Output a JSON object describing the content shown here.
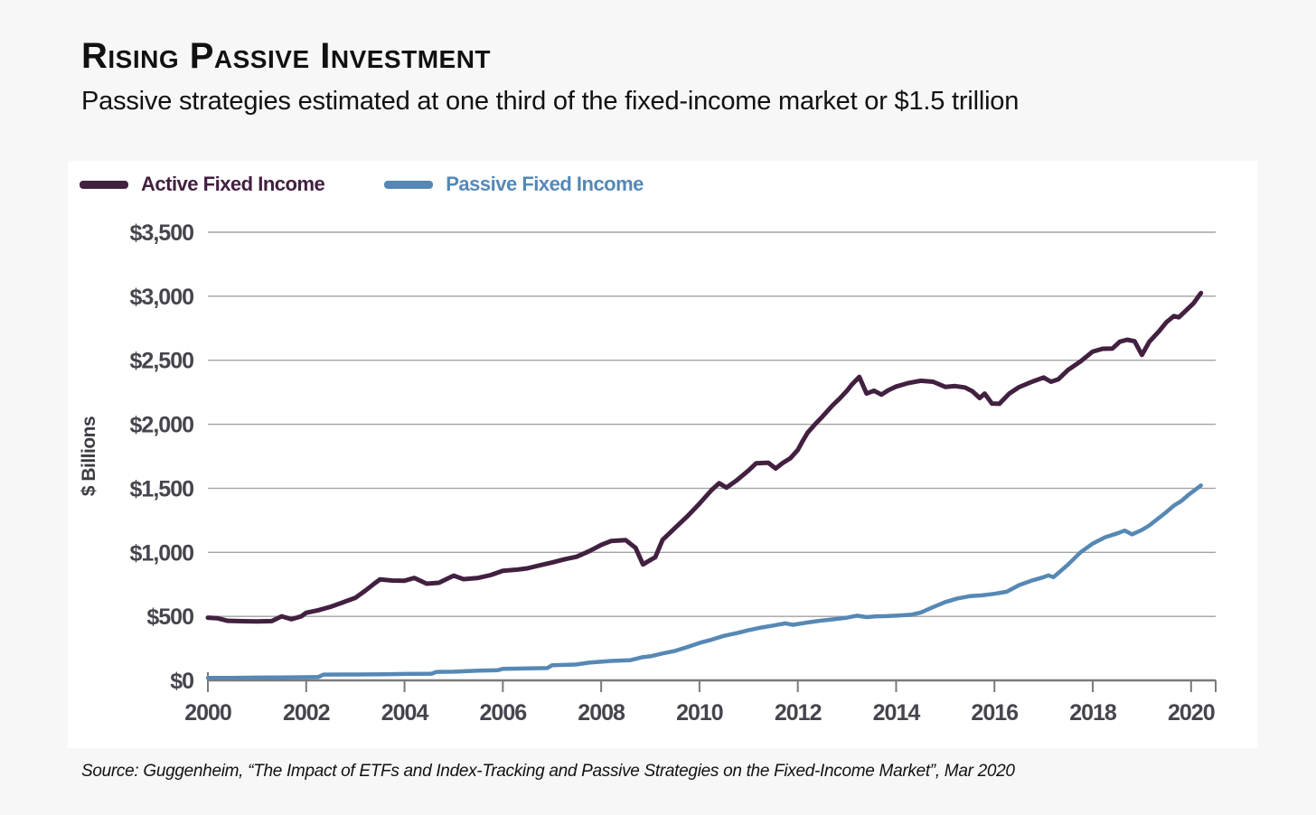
{
  "header": {
    "title": "Rising Passive Investment",
    "subtitle": "Passive strategies estimated at one third of the fixed-income market or $1.5 trillion"
  },
  "legend": {
    "items": [
      {
        "label": "Active Fixed Income",
        "color": "#422040"
      },
      {
        "label": "Passive Fixed Income",
        "color": "#5688b5"
      }
    ]
  },
  "chart_data": {
    "type": "line",
    "title": "Rising Passive Investment",
    "ylabel": "$ Billions",
    "xlabel": "",
    "xlim": [
      2000,
      2020.5
    ],
    "ylim": [
      0,
      3500
    ],
    "grid": "horizontal",
    "legend_position": "top-left",
    "colors": {
      "gridline": "#a3a3a3",
      "axis": "#7a7a7a",
      "tick_text": "#45454d"
    },
    "yticks": [
      {
        "value": 0,
        "label": "$0"
      },
      {
        "value": 500,
        "label": "$500"
      },
      {
        "value": 1000,
        "label": "$1,000"
      },
      {
        "value": 1500,
        "label": "$1,500"
      },
      {
        "value": 2000,
        "label": "$2,000"
      },
      {
        "value": 2500,
        "label": "$2,500"
      },
      {
        "value": 3000,
        "label": "$3,000"
      },
      {
        "value": 3500,
        "label": "$3,500"
      }
    ],
    "xticks": [
      {
        "value": 2000,
        "label": "2000"
      },
      {
        "value": 2002,
        "label": "2002"
      },
      {
        "value": 2004,
        "label": "2004"
      },
      {
        "value": 2006,
        "label": "2006"
      },
      {
        "value": 2008,
        "label": "2008"
      },
      {
        "value": 2010,
        "label": "2010"
      },
      {
        "value": 2012,
        "label": "2012"
      },
      {
        "value": 2014,
        "label": "2014"
      },
      {
        "value": 2016,
        "label": "2016"
      },
      {
        "value": 2018,
        "label": "2018"
      },
      {
        "value": 2020,
        "label": "2020"
      }
    ],
    "series": [
      {
        "name": "Active Fixed Income",
        "color": "#422040",
        "stroke_width": 5,
        "points": [
          [
            2000.0,
            490
          ],
          [
            2000.2,
            485
          ],
          [
            2000.4,
            465
          ],
          [
            2000.7,
            462
          ],
          [
            2001.0,
            460
          ],
          [
            2001.3,
            463
          ],
          [
            2001.5,
            500
          ],
          [
            2001.7,
            478
          ],
          [
            2001.9,
            500
          ],
          [
            2002.0,
            528
          ],
          [
            2002.25,
            548
          ],
          [
            2002.5,
            575
          ],
          [
            2002.75,
            610
          ],
          [
            2003.0,
            645
          ],
          [
            2003.2,
            700
          ],
          [
            2003.4,
            760
          ],
          [
            2003.5,
            788
          ],
          [
            2003.75,
            780
          ],
          [
            2004.0,
            778
          ],
          [
            2004.2,
            800
          ],
          [
            2004.45,
            755
          ],
          [
            2004.7,
            762
          ],
          [
            2004.85,
            790
          ],
          [
            2005.0,
            818
          ],
          [
            2005.2,
            790
          ],
          [
            2005.5,
            800
          ],
          [
            2005.75,
            822
          ],
          [
            2006.0,
            855
          ],
          [
            2006.3,
            865
          ],
          [
            2006.5,
            875
          ],
          [
            2006.75,
            898
          ],
          [
            2007.0,
            920
          ],
          [
            2007.25,
            945
          ],
          [
            2007.5,
            965
          ],
          [
            2007.75,
            1008
          ],
          [
            2008.0,
            1058
          ],
          [
            2008.2,
            1088
          ],
          [
            2008.5,
            1095
          ],
          [
            2008.7,
            1035
          ],
          [
            2008.85,
            905
          ],
          [
            2009.0,
            940
          ],
          [
            2009.1,
            962
          ],
          [
            2009.25,
            1098
          ],
          [
            2009.5,
            1190
          ],
          [
            2009.75,
            1280
          ],
          [
            2010.0,
            1380
          ],
          [
            2010.25,
            1488
          ],
          [
            2010.4,
            1540
          ],
          [
            2010.55,
            1505
          ],
          [
            2010.75,
            1560
          ],
          [
            2011.0,
            1640
          ],
          [
            2011.15,
            1695
          ],
          [
            2011.4,
            1700
          ],
          [
            2011.55,
            1655
          ],
          [
            2011.7,
            1700
          ],
          [
            2011.85,
            1735
          ],
          [
            2012.0,
            1800
          ],
          [
            2012.1,
            1870
          ],
          [
            2012.2,
            1935
          ],
          [
            2012.35,
            2000
          ],
          [
            2012.5,
            2060
          ],
          [
            2012.7,
            2145
          ],
          [
            2012.85,
            2200
          ],
          [
            2013.0,
            2262
          ],
          [
            2013.1,
            2310
          ],
          [
            2013.25,
            2370
          ],
          [
            2013.4,
            2240
          ],
          [
            2013.55,
            2262
          ],
          [
            2013.7,
            2232
          ],
          [
            2013.85,
            2268
          ],
          [
            2014.0,
            2295
          ],
          [
            2014.25,
            2322
          ],
          [
            2014.5,
            2340
          ],
          [
            2014.75,
            2332
          ],
          [
            2015.0,
            2292
          ],
          [
            2015.2,
            2298
          ],
          [
            2015.4,
            2288
          ],
          [
            2015.55,
            2258
          ],
          [
            2015.7,
            2205
          ],
          [
            2015.8,
            2240
          ],
          [
            2015.95,
            2162
          ],
          [
            2016.1,
            2160
          ],
          [
            2016.3,
            2240
          ],
          [
            2016.5,
            2290
          ],
          [
            2016.75,
            2330
          ],
          [
            2017.0,
            2365
          ],
          [
            2017.15,
            2332
          ],
          [
            2017.3,
            2352
          ],
          [
            2017.5,
            2425
          ],
          [
            2017.75,
            2490
          ],
          [
            2018.0,
            2568
          ],
          [
            2018.2,
            2590
          ],
          [
            2018.4,
            2592
          ],
          [
            2018.55,
            2645
          ],
          [
            2018.7,
            2660
          ],
          [
            2018.85,
            2648
          ],
          [
            2019.0,
            2542
          ],
          [
            2019.15,
            2645
          ],
          [
            2019.35,
            2728
          ],
          [
            2019.5,
            2798
          ],
          [
            2019.65,
            2845
          ],
          [
            2019.75,
            2835
          ],
          [
            2019.9,
            2890
          ],
          [
            2020.05,
            2945
          ],
          [
            2020.2,
            3025
          ]
        ]
      },
      {
        "name": "Passive Fixed Income",
        "color": "#5688b5",
        "stroke_width": 4.5,
        "points": [
          [
            2000.0,
            20
          ],
          [
            2000.5,
            20
          ],
          [
            2001.0,
            22
          ],
          [
            2001.5,
            23
          ],
          [
            2002.0,
            25
          ],
          [
            2002.25,
            27
          ],
          [
            2002.35,
            45
          ],
          [
            2003.0,
            46
          ],
          [
            2003.6,
            47
          ],
          [
            2004.0,
            50
          ],
          [
            2004.55,
            52
          ],
          [
            2004.65,
            66
          ],
          [
            2005.0,
            68
          ],
          [
            2005.5,
            76
          ],
          [
            2005.9,
            80
          ],
          [
            2006.0,
            90
          ],
          [
            2006.5,
            94
          ],
          [
            2006.9,
            96
          ],
          [
            2007.0,
            118
          ],
          [
            2007.5,
            124
          ],
          [
            2007.75,
            138
          ],
          [
            2008.2,
            152
          ],
          [
            2008.6,
            158
          ],
          [
            2008.85,
            182
          ],
          [
            2009.0,
            188
          ],
          [
            2009.25,
            210
          ],
          [
            2009.5,
            230
          ],
          [
            2009.75,
            260
          ],
          [
            2010.0,
            292
          ],
          [
            2010.25,
            318
          ],
          [
            2010.5,
            348
          ],
          [
            2010.75,
            368
          ],
          [
            2011.0,
            392
          ],
          [
            2011.25,
            412
          ],
          [
            2011.5,
            428
          ],
          [
            2011.75,
            445
          ],
          [
            2011.9,
            434
          ],
          [
            2012.0,
            440
          ],
          [
            2012.25,
            455
          ],
          [
            2012.5,
            468
          ],
          [
            2012.75,
            478
          ],
          [
            2013.0,
            490
          ],
          [
            2013.2,
            505
          ],
          [
            2013.4,
            494
          ],
          [
            2013.6,
            500
          ],
          [
            2013.8,
            502
          ],
          [
            2014.0,
            505
          ],
          [
            2014.3,
            512
          ],
          [
            2014.5,
            530
          ],
          [
            2014.75,
            572
          ],
          [
            2015.0,
            612
          ],
          [
            2015.25,
            640
          ],
          [
            2015.5,
            658
          ],
          [
            2015.75,
            664
          ],
          [
            2016.0,
            676
          ],
          [
            2016.25,
            692
          ],
          [
            2016.5,
            744
          ],
          [
            2016.75,
            778
          ],
          [
            2017.0,
            806
          ],
          [
            2017.1,
            820
          ],
          [
            2017.2,
            806
          ],
          [
            2017.35,
            855
          ],
          [
            2017.5,
            905
          ],
          [
            2017.75,
            1000
          ],
          [
            2018.0,
            1068
          ],
          [
            2018.25,
            1118
          ],
          [
            2018.5,
            1148
          ],
          [
            2018.65,
            1170
          ],
          [
            2018.8,
            1140
          ],
          [
            2019.0,
            1175
          ],
          [
            2019.15,
            1210
          ],
          [
            2019.35,
            1270
          ],
          [
            2019.5,
            1315
          ],
          [
            2019.65,
            1365
          ],
          [
            2019.8,
            1400
          ],
          [
            2019.95,
            1450
          ],
          [
            2020.2,
            1522
          ]
        ]
      }
    ]
  },
  "footer": {
    "source": "Source: Guggenheim, “The Impact of ETFs and Index-Tracking and Passive Strategies on the Fixed-Income Market”, Mar 2020"
  }
}
